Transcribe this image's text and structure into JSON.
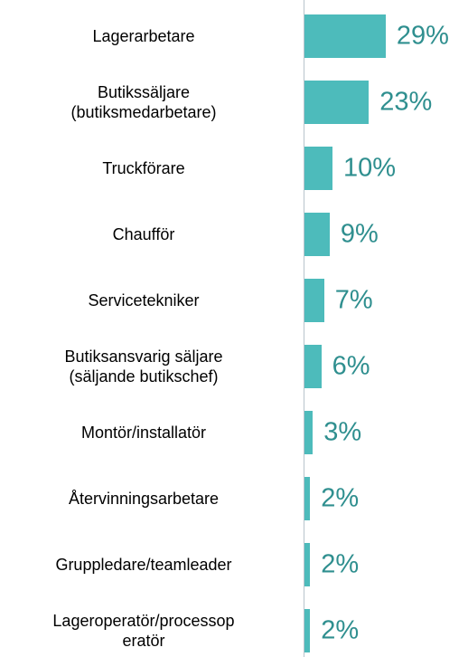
{
  "chart_data": {
    "type": "bar",
    "orientation": "horizontal",
    "categories": [
      "Lagerarbetare",
      "Butikssäljare\n(butiksmedarbetare)",
      "Truckförare",
      "Chaufför",
      "Servicetekniker",
      "Butiksansvarig säljare\n(säljande butikschef)",
      "Montör/installatör",
      "Återvinningsarbetare",
      "Gruppledare/teamleader",
      "Lageroperatör/processop\neratör"
    ],
    "values": [
      29,
      23,
      10,
      9,
      7,
      6,
      3,
      2,
      2,
      2
    ],
    "value_labels": [
      "29%",
      "23%",
      "10%",
      "9%",
      "7%",
      "6%",
      "3%",
      "2%",
      "2%",
      "2%"
    ],
    "color": "#4dbbbb",
    "label_color": "#2f8f8f"
  }
}
